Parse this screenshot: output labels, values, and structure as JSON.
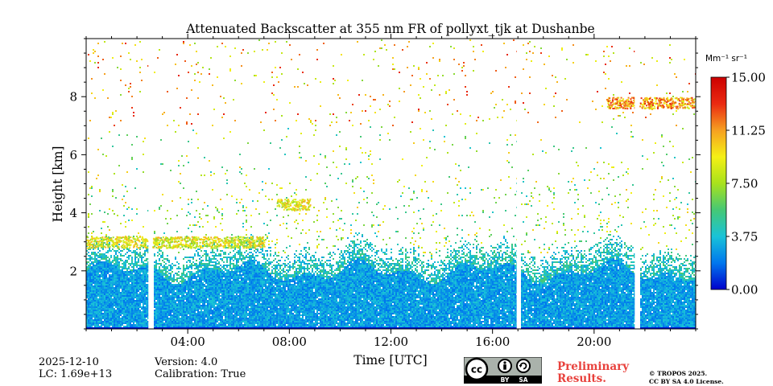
{
  "chart_data": {
    "type": "heatmap",
    "title": "Attenuated Backscatter at 355 nm FR of pollyxt_tjk at Dushanbe",
    "xlabel": "Time [UTC]",
    "ylabel": "Height [km]",
    "x_ticks": [
      "04:00",
      "08:00",
      "12:00",
      "16:00",
      "20:00"
    ],
    "x_tick_hours": [
      4,
      8,
      12,
      16,
      20
    ],
    "xlim_hours": [
      0,
      24
    ],
    "y_ticks": [
      "2",
      "4",
      "6",
      "8"
    ],
    "y_tick_values": [
      2,
      4,
      6,
      8
    ],
    "ylim_km": [
      0,
      10
    ],
    "colorbar": {
      "unit_label": "Mm⁻¹ sr⁻¹",
      "ticks": [
        "0.00",
        "3.75",
        "7.50",
        "11.25",
        "15.00"
      ],
      "tick_values": [
        0,
        3.75,
        7.5,
        11.25,
        15
      ],
      "range": [
        0,
        15
      ],
      "colors": [
        "#0000cc",
        "#0077ee",
        "#19c3d8",
        "#45c875",
        "#a8e21c",
        "#f5f015",
        "#f6a021",
        "#ea2a12",
        "#cc0000"
      ]
    },
    "data_gaps_hours": [
      [
        2.45,
        2.6
      ],
      [
        16.95,
        17.1
      ],
      [
        21.6,
        21.75
      ]
    ],
    "features": [
      {
        "name": "boundary layer",
        "from_hour": 0,
        "to_hour": 24,
        "top_km": 2.6
      },
      {
        "name": "aerosol layer top",
        "from_hour": 0,
        "to_hour": 7,
        "height_km": 3.0
      },
      {
        "name": "elevated layer",
        "from_hour": 7.5,
        "to_hour": 8.8,
        "height_km": 4.3
      },
      {
        "name": "cirrus",
        "from_hour": 20.5,
        "to_hour": 24,
        "height_km": 7.8
      }
    ]
  },
  "info": {
    "date": "2025-12-10",
    "lc": "LC: 1.69e+13",
    "version": "Version: 4.0",
    "calibration": "Calibration: True",
    "preliminary_line1": "Preliminary",
    "preliminary_line2": "Results.",
    "copyright_line1": "© TROPOS 2025.",
    "copyright_line2": "CC BY SA 4.0 License.",
    "license_by": "BY",
    "license_sa": "SA",
    "license_cc": "cc"
  }
}
